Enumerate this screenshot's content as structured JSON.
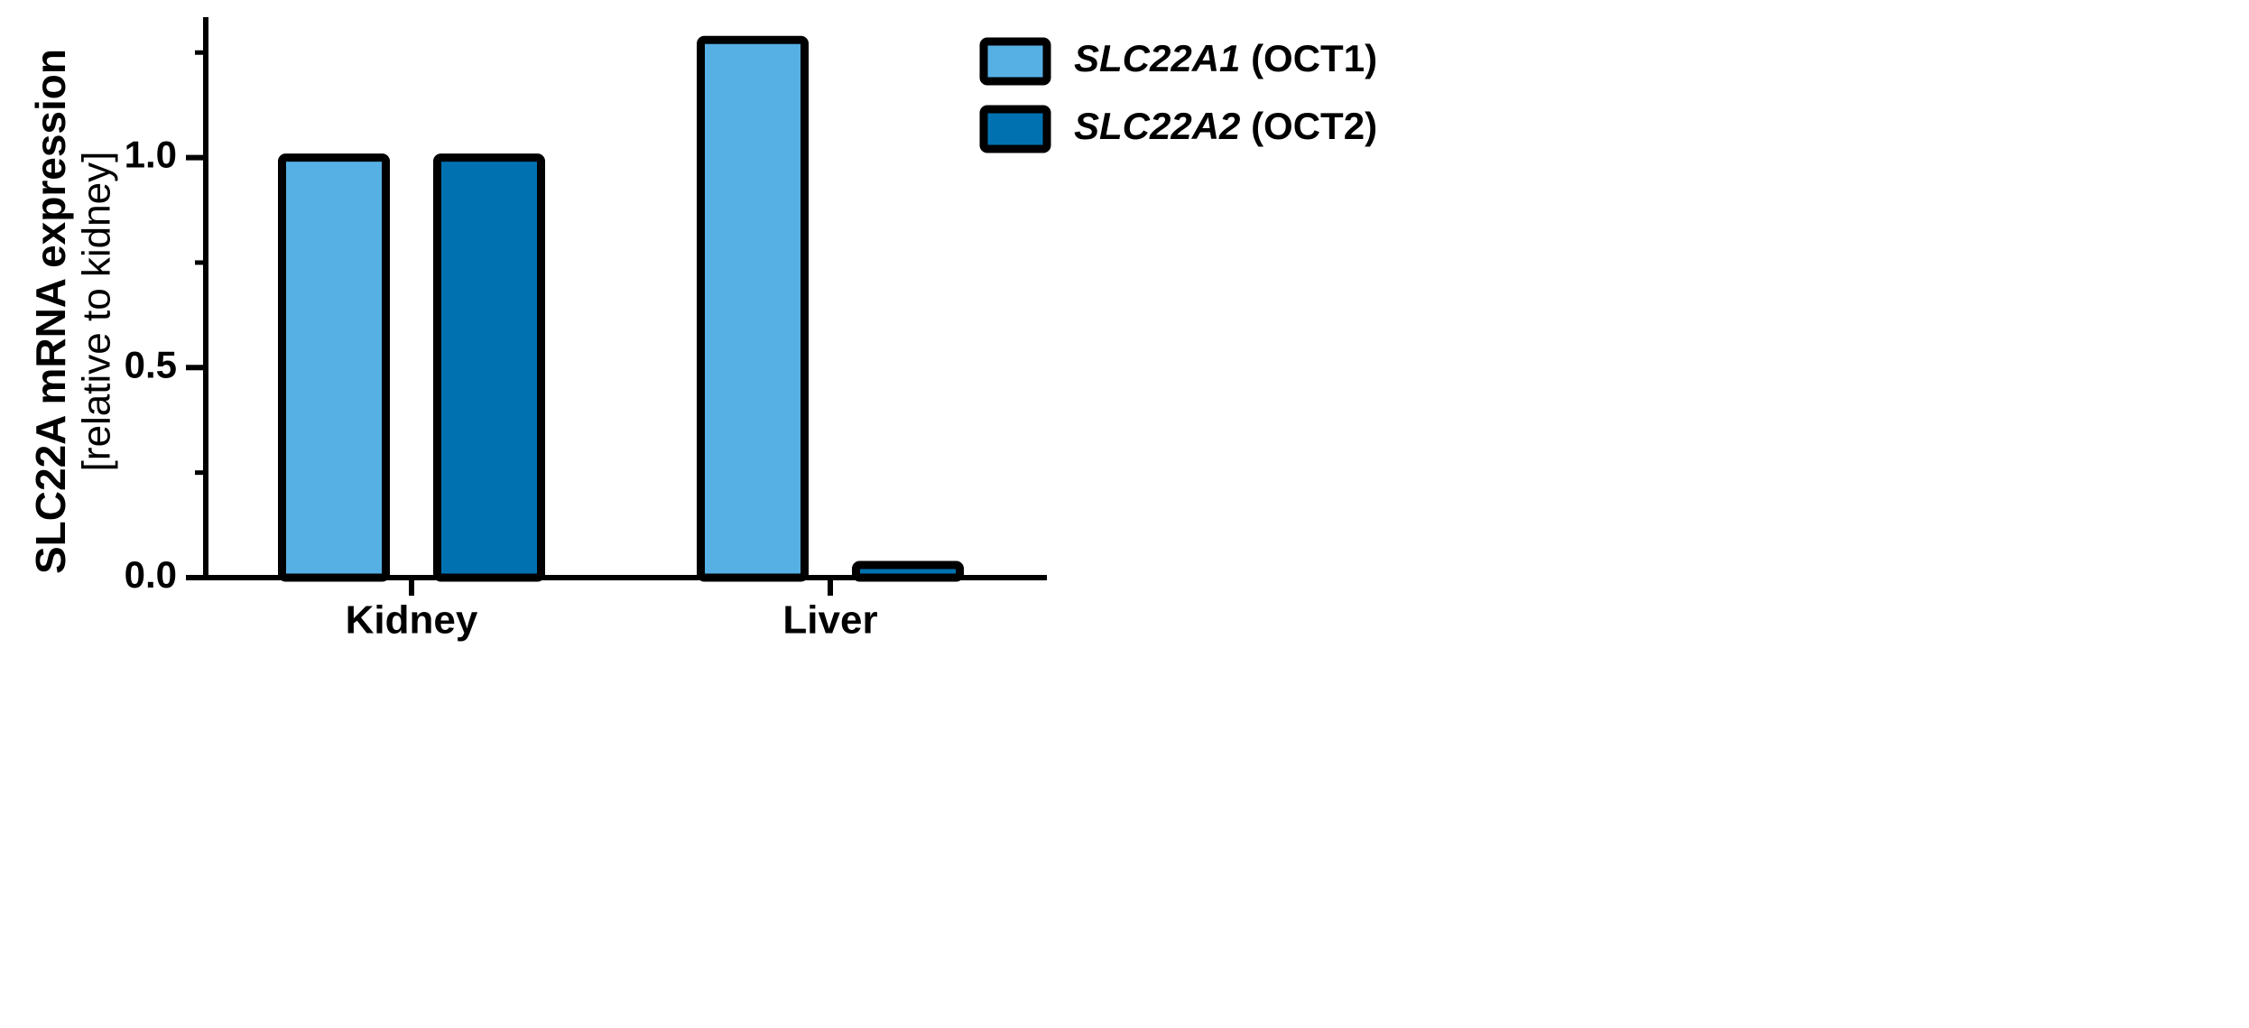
{
  "chart_data": {
    "type": "bar",
    "y_label": "SLC22A mRNA expression",
    "y_label_sub": "[relative to kidney]",
    "categories": [
      "Kidney",
      "Liver"
    ],
    "series": [
      {
        "name": "SLC22A1 (OCT1)",
        "color": "#56b0e4",
        "values": [
          1.0,
          1.28
        ]
      },
      {
        "name": "SLC22A2 (OCT2)",
        "color": "#0071b0",
        "values": [
          1.0,
          0.03
        ]
      }
    ],
    "ylim": [
      0,
      1.33
    ],
    "yticks": [
      {
        "value": 0,
        "label": "0.0"
      },
      {
        "value": 0.5,
        "label": "0.5"
      },
      {
        "value": 1.0,
        "label": "1.0"
      }
    ],
    "yticks_minor": [
      0.25,
      0.75,
      1.25
    ],
    "grid": false,
    "legend": "top-right"
  }
}
